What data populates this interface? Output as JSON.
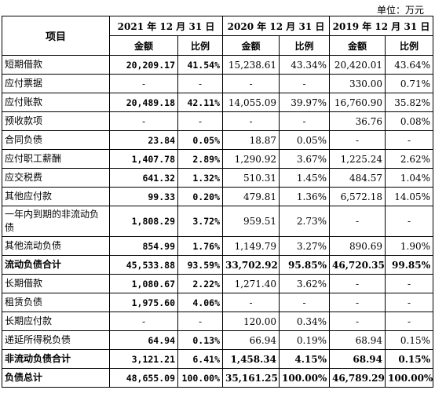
{
  "unit_label": "单位：万元",
  "header": {
    "item": "项目",
    "periods": [
      "2021 年 12 月 31 日",
      "2020 年 12 月 31 日",
      "2019 年 12 月 31 日"
    ],
    "amount": "金额",
    "ratio": "比例"
  },
  "rows": [
    {
      "label": "短期借款",
      "v": [
        "20,209.17",
        "41.54%",
        "15,238.61",
        "43.34%",
        "20,420.01",
        "43.64%"
      ],
      "bold": false,
      "tall": false
    },
    {
      "label": "应付票据",
      "v": [
        "-",
        "-",
        "-",
        "-",
        "330.00",
        "0.71%"
      ],
      "bold": false,
      "tall": false
    },
    {
      "label": "应付账款",
      "v": [
        "20,489.18",
        "42.11%",
        "14,055.09",
        "39.97%",
        "16,760.90",
        "35.82%"
      ],
      "bold": false,
      "tall": false
    },
    {
      "label": "预收款项",
      "v": [
        "-",
        "-",
        "-",
        "-",
        "36.76",
        "0.08%"
      ],
      "bold": false,
      "tall": false
    },
    {
      "label": "合同负债",
      "v": [
        "23.84",
        "0.05%",
        "18.87",
        "0.05%",
        "-",
        "-"
      ],
      "bold": false,
      "tall": false
    },
    {
      "label": "应付职工薪酬",
      "v": [
        "1,407.78",
        "2.89%",
        "1,290.92",
        "3.67%",
        "1,225.24",
        "2.62%"
      ],
      "bold": false,
      "tall": false
    },
    {
      "label": "应交税费",
      "v": [
        "641.32",
        "1.32%",
        "510.31",
        "1.45%",
        "484.57",
        "1.04%"
      ],
      "bold": false,
      "tall": false
    },
    {
      "label": "其他应付款",
      "v": [
        "99.33",
        "0.20%",
        "479.81",
        "1.36%",
        "6,572.18",
        "14.05%"
      ],
      "bold": false,
      "tall": false
    },
    {
      "label": "一年内到期的非流动负债",
      "v": [
        "1,808.29",
        "3.72%",
        "959.51",
        "2.73%",
        "-",
        "-"
      ],
      "bold": false,
      "tall": true
    },
    {
      "label": "其他流动负债",
      "v": [
        "854.99",
        "1.76%",
        "1,149.79",
        "3.27%",
        "890.69",
        "1.90%"
      ],
      "bold": false,
      "tall": false
    },
    {
      "label": "流动负债合计",
      "v": [
        "45,533.88",
        "93.59%",
        "33,702.92",
        "95.85%",
        "46,720.35",
        "99.85%"
      ],
      "bold": true,
      "tall": false
    },
    {
      "label": "长期借款",
      "v": [
        "1,080.67",
        "2.22%",
        "1,271.40",
        "3.62%",
        "-",
        "-"
      ],
      "bold": false,
      "tall": false
    },
    {
      "label": "租赁负债",
      "v": [
        "1,975.60",
        "4.06%",
        "-",
        "-",
        "-",
        "-"
      ],
      "bold": false,
      "tall": false
    },
    {
      "label": "长期应付款",
      "v": [
        "-",
        "-",
        "120.00",
        "0.34%",
        "-",
        "-"
      ],
      "bold": false,
      "tall": false
    },
    {
      "label": "递延所得税负债",
      "v": [
        "64.94",
        "0.13%",
        "66.94",
        "0.19%",
        "68.94",
        "0.15%"
      ],
      "bold": false,
      "tall": false
    },
    {
      "label": "非流动负债合计",
      "v": [
        "3,121.21",
        "6.41%",
        "1,458.34",
        "4.15%",
        "68.94",
        "0.15%"
      ],
      "bold": true,
      "tall": false
    },
    {
      "label": "负债总计",
      "v": [
        "48,655.09",
        "100.00%",
        "35,161.25",
        "100.00%",
        "46,789.29",
        "100.00%"
      ],
      "bold": true,
      "tall": false
    }
  ]
}
